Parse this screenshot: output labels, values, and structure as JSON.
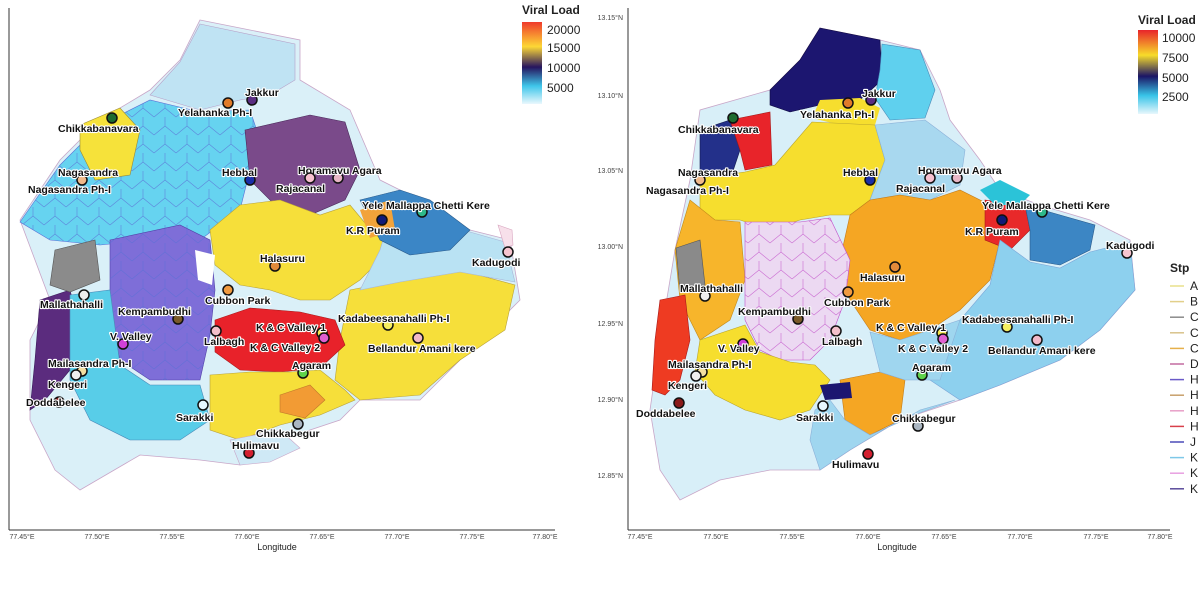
{
  "maps": [
    {
      "id": "left",
      "legend": {
        "title": "Viral Load",
        "labels": [
          "20000",
          "15000",
          "10000",
          "5000"
        ]
      },
      "x_axis": {
        "title": "Longitude",
        "ticks": [
          "77.45°E",
          "77.50°E",
          "77.55°E",
          "77.60°E",
          "77.65°E",
          "77.70°E",
          "77.75°E",
          "77.80°E"
        ]
      },
      "y_axis": {
        "ticks": []
      }
    },
    {
      "id": "right",
      "legend": {
        "title": "Viral Load",
        "labels": [
          "10000",
          "7500",
          "5000",
          "2500"
        ]
      },
      "x_axis": {
        "title": "Longitude",
        "ticks": [
          "77.45°E",
          "77.50°E",
          "77.55°E",
          "77.60°E",
          "77.65°E",
          "77.70°E",
          "77.75°E",
          "77.80°E"
        ]
      },
      "y_axis": {
        "ticks": [
          "13.15°N",
          "13.10°N",
          "13.05°N",
          "13.00°N",
          "12.95°N",
          "12.90°N",
          "12.85°N"
        ]
      }
    }
  ],
  "stp_legend": {
    "title": "Stp",
    "items": [
      "A",
      "B",
      "C",
      "C",
      "C",
      "D",
      "H",
      "H",
      "H",
      "H",
      "J",
      "K",
      "K",
      "K"
    ]
  },
  "stations": [
    {
      "name": "Jakkur",
      "color": "#5a2d82"
    },
    {
      "name": "Yelahanka Ph-I",
      "color": "#e07b2a"
    },
    {
      "name": "Chikkabanavara",
      "color": "#1e6b2f"
    },
    {
      "name": "Nagasandra",
      "color": "#f0b98a"
    },
    {
      "name": "Nagasandra Ph-I",
      "color": "#f0b98a"
    },
    {
      "name": "Hebbal",
      "color": "#1a2ea8"
    },
    {
      "name": "Horamavu Agara",
      "color": "#e8b6c6"
    },
    {
      "name": "Rajacanal",
      "color": "#f7c0cf"
    },
    {
      "name": "Yele Mallappa Chetti Kere",
      "color": "#2eb88a"
    },
    {
      "name": "K.R Puram",
      "color": "#101a78"
    },
    {
      "name": "Kadugodi",
      "color": "#f6c4cf"
    },
    {
      "name": "Halasuru",
      "color": "#e28a3a"
    },
    {
      "name": "Mallathahalli",
      "color": "#eeeeee"
    },
    {
      "name": "Kempambudhi",
      "color": "#7a5a2a"
    },
    {
      "name": "Cubbon Park",
      "color": "#f09a40"
    },
    {
      "name": "K & C Valley 1",
      "color": "#f7e64a"
    },
    {
      "name": "K & C Valley 2",
      "color": "#e060d0"
    },
    {
      "name": "Kadabeesanahalli Ph-I",
      "color": "#f5ee60"
    },
    {
      "name": "Bellandur Amani kere",
      "color": "#f2b8c8"
    },
    {
      "name": "V. Valley",
      "color": "#d040d8"
    },
    {
      "name": "Lalbagh",
      "color": "#f3c0cb"
    },
    {
      "name": "Mailasandra Ph-I",
      "color": "#f3dfa0"
    },
    {
      "name": "Kengeri",
      "color": "#eeeeee"
    },
    {
      "name": "Doddabelee",
      "color": "#8a1a1a"
    },
    {
      "name": "Agaram",
      "color": "#5ed24a"
    },
    {
      "name": "Sarakki",
      "color": "#e6f7ff"
    },
    {
      "name": "Chikkabegur",
      "color": "#aab6c2"
    },
    {
      "name": "Hulimavu",
      "color": "#d21f2f"
    }
  ]
}
